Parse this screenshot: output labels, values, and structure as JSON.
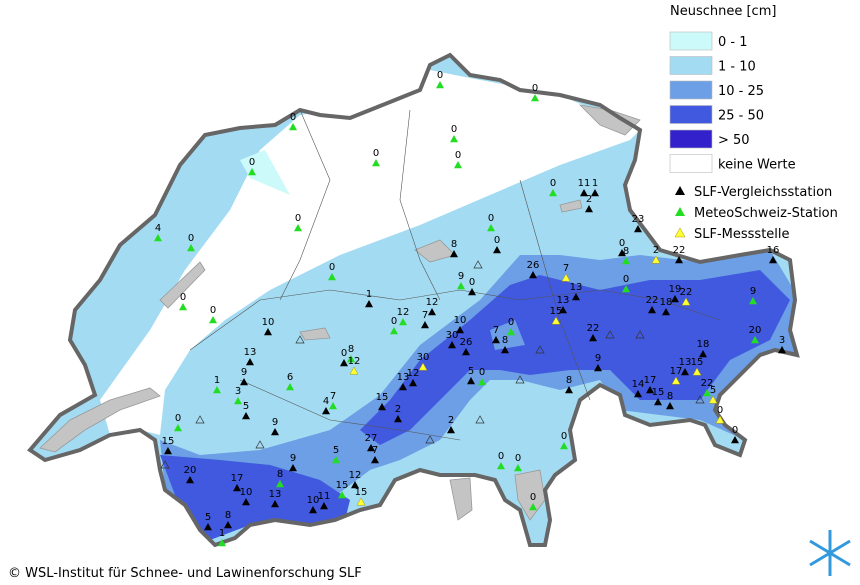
{
  "legend": {
    "title": "Neuschnee [cm]",
    "classes": [
      {
        "label": "0 - 1",
        "color": "#ccfafa"
      },
      {
        "label": "1 - 10",
        "color": "#a3dcf2"
      },
      {
        "label": "10 - 25",
        "color": "#6c9fe6"
      },
      {
        "label": "25 - 50",
        "color": "#4059de"
      },
      {
        "label": "> 50",
        "color": "#3322cc"
      },
      {
        "label": "keine Werte",
        "color": "#ffffff"
      }
    ],
    "station_types": [
      {
        "label": "SLF-Vergleichsstation",
        "color": "#000000"
      },
      {
        "label": "MeteoSchweiz-Station",
        "color": "#22dd22"
      },
      {
        "label": "SLF-Messstelle",
        "color": "#ffff33"
      }
    ]
  },
  "stations": [
    0,
    0,
    0,
    0,
    0,
    0,
    0,
    11,
    1,
    2,
    0,
    4,
    0,
    0,
    0,
    0,
    8,
    23,
    0,
    8,
    2,
    22,
    16,
    0,
    9,
    0,
    26,
    7,
    0,
    13,
    0,
    0,
    1,
    12,
    12,
    0,
    7,
    13,
    15,
    22,
    19,
    22,
    18,
    9,
    10,
    10,
    7,
    0,
    22,
    20,
    3,
    30,
    26,
    8,
    13,
    0,
    8,
    12,
    18,
    30,
    9,
    13,
    15,
    9,
    1,
    6,
    13,
    12,
    5,
    0,
    17,
    14,
    17,
    8,
    22,
    3,
    5,
    7,
    4,
    15,
    15,
    8,
    5,
    0,
    0,
    2,
    0,
    9,
    2,
    15,
    27,
    7,
    0,
    9,
    5,
    0,
    0,
    20,
    12,
    17,
    8,
    15,
    15,
    10,
    13,
    10,
    11,
    0,
    5,
    8,
    1
  ],
  "copyright": "© WSL-Institut für Schnee- und Lawinenforschung SLF"
}
